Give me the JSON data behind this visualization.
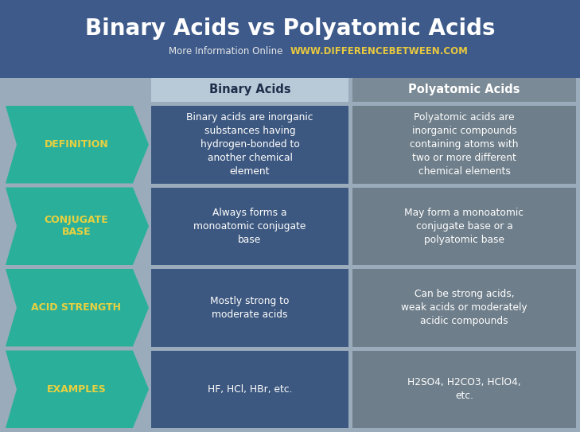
{
  "title": "Binary Acids vs Polyatomic Acids",
  "subtitle_normal": "More Information Online  ",
  "subtitle_bold": "WWW.DIFFERENCEBETWEEN.COM",
  "bg_color": "#9aabbb",
  "header_bg": "#3d5a8a",
  "title_color": "#ffffff",
  "subtitle_normal_color": "#e8e8e8",
  "subtitle_bold_color": "#e8c840",
  "col1_header": "Binary Acids",
  "col2_header": "Polyatomic Acids",
  "col1_header_bg": "#b8cad8",
  "col1_header_text": "#1e2e4a",
  "col2_header_bg": "#7a8a96",
  "col2_header_text": "#ffffff",
  "arrow_color": "#2ab09a",
  "arrow_text_color": "#e8d040",
  "col1_bg": "#3d5880",
  "col2_bg": "#6e7e8a",
  "cell_text_color": "#ffffff",
  "figw": 7.29,
  "figh": 5.43,
  "dpi": 100,
  "rows": [
    {
      "label": "DEFINITION",
      "col1": "Binary acids are inorganic\nsubstances having\nhydrogen-bonded to\nanother chemical\nelement",
      "col2": "Polyatomic acids are\ninorganic compounds\ncontaining atoms with\ntwo or more different\nchemical elements"
    },
    {
      "label": "CONJUGATE\nBASE",
      "col1": "Always forms a\nmonoatomic conjugate\nbase",
      "col2": "May form a monoatomic\nconjugate base or a\npolyatomic base"
    },
    {
      "label": "ACID STRENGTH",
      "col1": "Mostly strong to\nmoderate acids",
      "col2": "Can be strong acids,\nweak acids or moderately\nacidic compounds"
    },
    {
      "label": "EXAMPLES",
      "col1": "HF, HCl, HBr, etc.",
      "col2": "H2SO4, H2CO3, HClO4,\netc."
    }
  ]
}
